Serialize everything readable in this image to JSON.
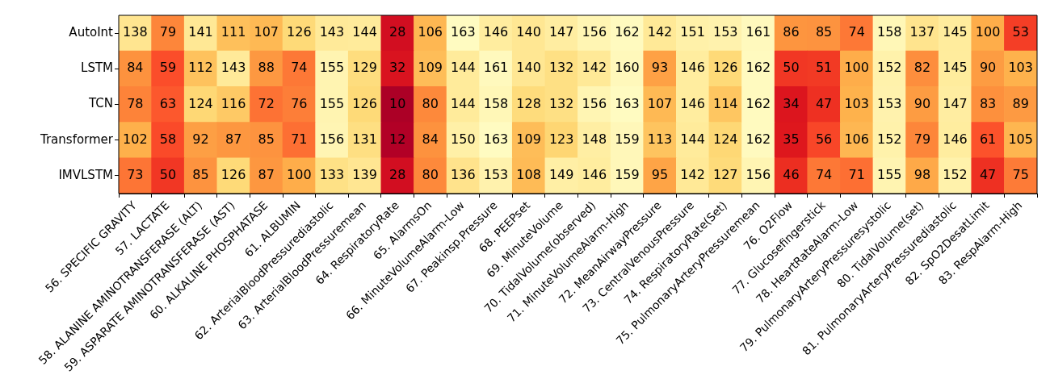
{
  "chart_data": {
    "type": "heatmap",
    "categories": [
      "56. SPECIFIC GRAVITY",
      "57. LACTATE",
      "58. ALANINE AMINOTRANSFERASE (ALT)",
      "59. ASPARATE AMINOTRANSFERASE (AST)",
      "60. ALKALINE PHOSPHATASE",
      "61. ALBUMIN",
      "62. ArterialBloodPressurediastolic",
      "63. ArterialBloodPressuremean",
      "64. RespiratoryRate",
      "65. AlarmsOn",
      "66. MinuteVolumeAlarm-Low",
      "67. Peakinsp.Pressure",
      "68. PEEPset",
      "69. MinuteVolume",
      "70. TidalVolume(observed)",
      "71. MinuteVolumeAlarm-High",
      "72. MeanAirwayPressure",
      "73. CentralVenousPressure",
      "74. RespiratoryRate(Set)",
      "75. PulmonaryArteryPressuremean",
      "76. O2Flow",
      "77. Glucosefingerstick",
      "78. HeartRateAlarm-Low",
      "79. PulmonaryArteryPressuresystolic",
      "80. TidalVolume(set)",
      "81. PulmonaryArteryPressurediastolic",
      "82. SpO2DesatLimit",
      "83. RespAlarm-High"
    ],
    "y_categories": [
      "AutoInt",
      "LSTM",
      "TCN",
      "Transformer",
      "IMVLSTM"
    ],
    "cells": [
      [
        138,
        79,
        141,
        111,
        107,
        126,
        143,
        144,
        28,
        106,
        163,
        146,
        140,
        147,
        156,
        162,
        142,
        151,
        153,
        161,
        86,
        85,
        74,
        158,
        137,
        145,
        100,
        53
      ],
      [
        84,
        59,
        112,
        143,
        88,
        74,
        155,
        129,
        32,
        109,
        144,
        161,
        140,
        132,
        142,
        160,
        93,
        146,
        126,
        162,
        50,
        51,
        100,
        152,
        82,
        145,
        90,
        103
      ],
      [
        78,
        63,
        124,
        116,
        72,
        76,
        155,
        126,
        10,
        80,
        144,
        158,
        128,
        132,
        156,
        163,
        107,
        146,
        114,
        162,
        34,
        47,
        103,
        153,
        90,
        147,
        83,
        89
      ],
      [
        102,
        58,
        92,
        87,
        85,
        71,
        156,
        131,
        12,
        84,
        150,
        163,
        109,
        123,
        148,
        159,
        113,
        144,
        124,
        162,
        35,
        56,
        106,
        152,
        79,
        146,
        61,
        105
      ],
      [
        73,
        50,
        85,
        126,
        87,
        100,
        133,
        139,
        28,
        80,
        136,
        153,
        108,
        149,
        146,
        159,
        95,
        142,
        127,
        156,
        46,
        74,
        71,
        155,
        98,
        152,
        47,
        75
      ]
    ],
    "data_labels": true
  }
}
